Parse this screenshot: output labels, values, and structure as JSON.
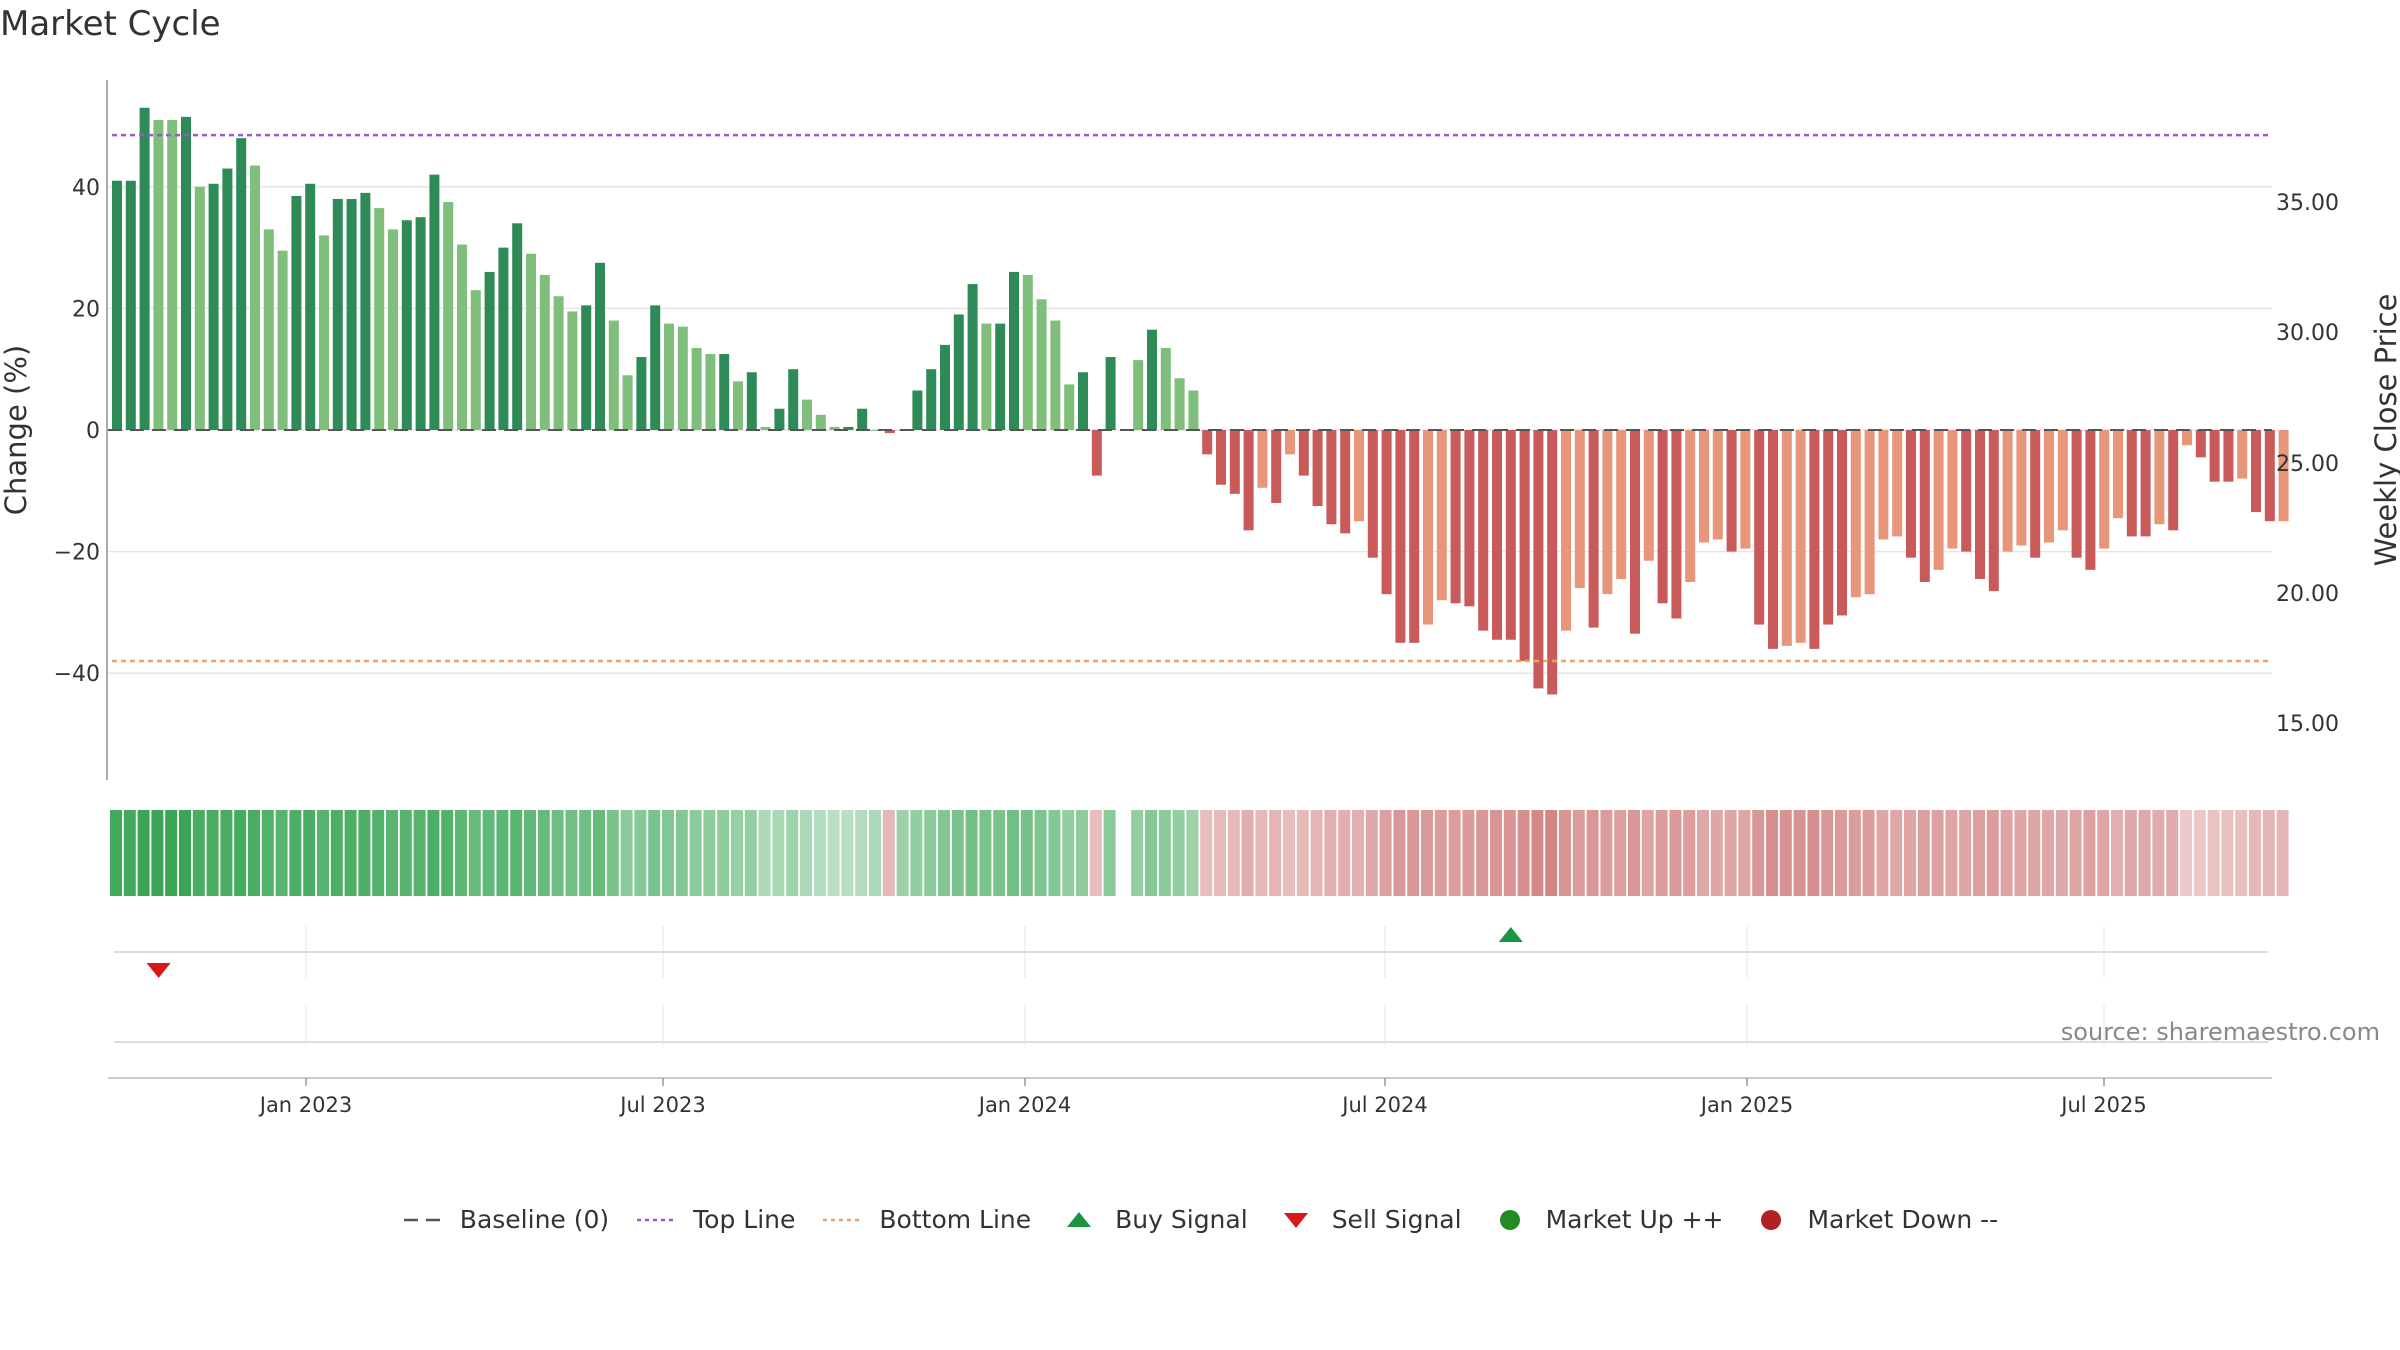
{
  "title": "Market Cycle",
  "source": "source: sharemaestro.com",
  "colors": {
    "up_dark": "#2e8b57",
    "up_light": "#7fbf7b",
    "down_dark": "#c85a5a",
    "down_light": "#e8967a",
    "top_line": "#9b59d0",
    "bottom_line": "#f0a060",
    "baseline": "#555555",
    "buy": "#1a9641",
    "sell": "#d7191c",
    "market_up": "#228b22",
    "market_down": "#b22222"
  },
  "legend": [
    {
      "label": "Baseline (0)",
      "icon": "dash-line-icon",
      "color": "#555555"
    },
    {
      "label": "Top Line",
      "icon": "dotted-line-icon",
      "color": "#9b59d0"
    },
    {
      "label": "Bottom Line",
      "icon": "dotted-line-icon",
      "color": "#f0a060"
    },
    {
      "label": "Buy Signal",
      "icon": "triangle-up-icon",
      "color": "#1a9641"
    },
    {
      "label": "Sell Signal",
      "icon": "triangle-down-icon",
      "color": "#d7191c"
    },
    {
      "label": "Market Up ++",
      "icon": "circle-icon",
      "color": "#228b22"
    },
    {
      "label": "Market Down --",
      "icon": "circle-icon",
      "color": "#b22222"
    }
  ],
  "chart_data": {
    "type": "bar",
    "title": "Market Cycle",
    "ylabel": "Change (%)",
    "y2label": "Weekly Close Price",
    "ylim": [
      -58,
      58
    ],
    "yticks": [
      -40,
      -20,
      0,
      20,
      40
    ],
    "y2ticks": [
      "15.00",
      "20.00",
      "25.00",
      "30.00",
      "35.00"
    ],
    "x_date_ticks": [
      "Jan 2023",
      "Jul 2023",
      "Jan 2024",
      "Jul 2024",
      "Jan 2025",
      "Jul 2025"
    ],
    "top_line": 48.5,
    "bottom_line": -38,
    "baseline": 0,
    "x_start": "2022-10-03",
    "x_end": "2025-10-13",
    "values": [
      41,
      41,
      53,
      51,
      51,
      51.5,
      40,
      40.5,
      43,
      48,
      43.5,
      33,
      29.5,
      38.5,
      40.5,
      32,
      38,
      38,
      39,
      36.5,
      33,
      34.5,
      35,
      42,
      37.5,
      30.5,
      23,
      26,
      30,
      34,
      29,
      25.5,
      22,
      19.5,
      20.5,
      27.5,
      18,
      9,
      12,
      20.5,
      17.5,
      17,
      13.5,
      12.5,
      12.5,
      8,
      9.5,
      0.5,
      3.5,
      10,
      5,
      2.5,
      0.5,
      0.5,
      3.5,
      0,
      -0.5,
      0,
      6.5,
      10,
      14,
      19,
      24,
      17.5,
      17.5,
      26,
      25.5,
      21.5,
      18,
      7.5,
      9.5,
      -7.5,
      12,
      null,
      11.5,
      16.5,
      13.5,
      8.5,
      6.5,
      -4,
      -9,
      -10.5,
      -16.5,
      -9.5,
      -12,
      -4,
      -7.5,
      -12.5,
      -15.5,
      -17,
      -15,
      -21,
      -27,
      -35,
      -35,
      -32,
      -28,
      -28.5,
      -29,
      -33,
      -34.5,
      -34.5,
      -38,
      -42.5,
      -43.5,
      -33,
      -26,
      -32.5,
      -27,
      -24.5,
      -33.5,
      -21.5,
      -28.5,
      -31,
      -25,
      -18.5,
      -18,
      -20,
      -19.5,
      -32,
      -36,
      -35.5,
      -35,
      -36,
      -32,
      -30.5,
      -27.5,
      -27,
      -18,
      -17.5,
      -21,
      -25,
      -23,
      -19.5,
      -20,
      -24.5,
      -26.5,
      -20,
      -19,
      -21,
      -18.5,
      -16.5,
      -21,
      -23,
      -19.5,
      -14.5,
      -17.5,
      -17.5,
      -15.5,
      -16.5,
      -2.5,
      -4.5,
      -8.5,
      -8.5,
      -8,
      -13.5,
      -15,
      -15
    ],
    "shades": [
      1,
      1,
      1,
      0,
      0,
      1,
      0,
      1,
      1,
      1,
      0,
      0,
      0,
      1,
      1,
      0,
      1,
      1,
      1,
      0,
      0,
      1,
      1,
      1,
      0,
      0,
      0,
      1,
      1,
      1,
      0,
      0,
      0,
      0,
      1,
      1,
      0,
      0,
      1,
      1,
      0,
      0,
      0,
      0,
      1,
      0,
      1,
      0,
      1,
      1,
      0,
      0,
      0,
      1,
      1,
      0,
      1,
      0,
      1,
      1,
      1,
      1,
      1,
      0,
      1,
      1,
      0,
      0,
      0,
      0,
      1,
      1,
      1,
      0,
      0,
      1,
      0,
      0,
      0,
      1,
      1,
      1,
      1,
      0,
      1,
      0,
      1,
      1,
      1,
      1,
      0,
      1,
      1,
      1,
      1,
      0,
      0,
      1,
      1,
      1,
      1,
      1,
      1,
      1,
      1,
      0,
      0,
      1,
      0,
      0,
      1,
      0,
      1,
      1,
      0,
      0,
      0,
      1,
      0,
      1,
      1,
      0,
      0,
      1,
      1,
      1,
      0,
      0,
      0,
      0,
      1,
      1,
      0,
      0,
      1,
      1,
      1,
      0,
      0,
      1,
      0,
      0,
      1,
      1,
      0,
      0,
      1,
      1,
      0,
      1,
      0,
      1,
      1,
      1,
      0,
      1,
      1,
      0
    ],
    "heat_strength": [
      0.95,
      0.95,
      1.0,
      1.0,
      1.0,
      1.0,
      0.9,
      0.9,
      0.9,
      0.92,
      0.9,
      0.85,
      0.82,
      0.88,
      0.9,
      0.82,
      0.88,
      0.88,
      0.88,
      0.85,
      0.8,
      0.82,
      0.82,
      0.88,
      0.85,
      0.78,
      0.72,
      0.75,
      0.78,
      0.8,
      0.75,
      0.72,
      0.68,
      0.65,
      0.66,
      0.72,
      0.6,
      0.5,
      0.52,
      0.6,
      0.55,
      0.55,
      0.5,
      0.48,
      0.48,
      0.42,
      0.44,
      0.3,
      0.32,
      0.38,
      0.3,
      0.25,
      0.22,
      0.22,
      0.25,
      0.3,
      0.35,
      0.4,
      0.45,
      0.5,
      0.55,
      0.6,
      0.65,
      0.6,
      0.6,
      0.66,
      0.62,
      0.58,
      0.55,
      0.45,
      0.48,
      0.3,
      0.5,
      0.0,
      0.45,
      0.55,
      0.5,
      0.45,
      0.4,
      0.3,
      0.32,
      0.34,
      0.42,
      0.34,
      0.36,
      0.3,
      0.32,
      0.36,
      0.4,
      0.42,
      0.4,
      0.46,
      0.52,
      0.6,
      0.6,
      0.58,
      0.56,
      0.56,
      0.57,
      0.6,
      0.62,
      0.62,
      0.66,
      0.72,
      0.74,
      0.62,
      0.56,
      0.6,
      0.56,
      0.54,
      0.6,
      0.5,
      0.56,
      0.58,
      0.54,
      0.48,
      0.48,
      0.5,
      0.5,
      0.6,
      0.66,
      0.64,
      0.64,
      0.66,
      0.6,
      0.58,
      0.56,
      0.56,
      0.48,
      0.48,
      0.5,
      0.54,
      0.52,
      0.5,
      0.5,
      0.54,
      0.56,
      0.5,
      0.48,
      0.5,
      0.48,
      0.46,
      0.5,
      0.52,
      0.48,
      0.42,
      0.46,
      0.46,
      0.44,
      0.44,
      0.2,
      0.22,
      0.26,
      0.28,
      0.28,
      0.34,
      0.36,
      0.36
    ],
    "signals": [
      {
        "type": "sell",
        "index": 2
      },
      {
        "type": "buy",
        "index": 101
      }
    ]
  }
}
